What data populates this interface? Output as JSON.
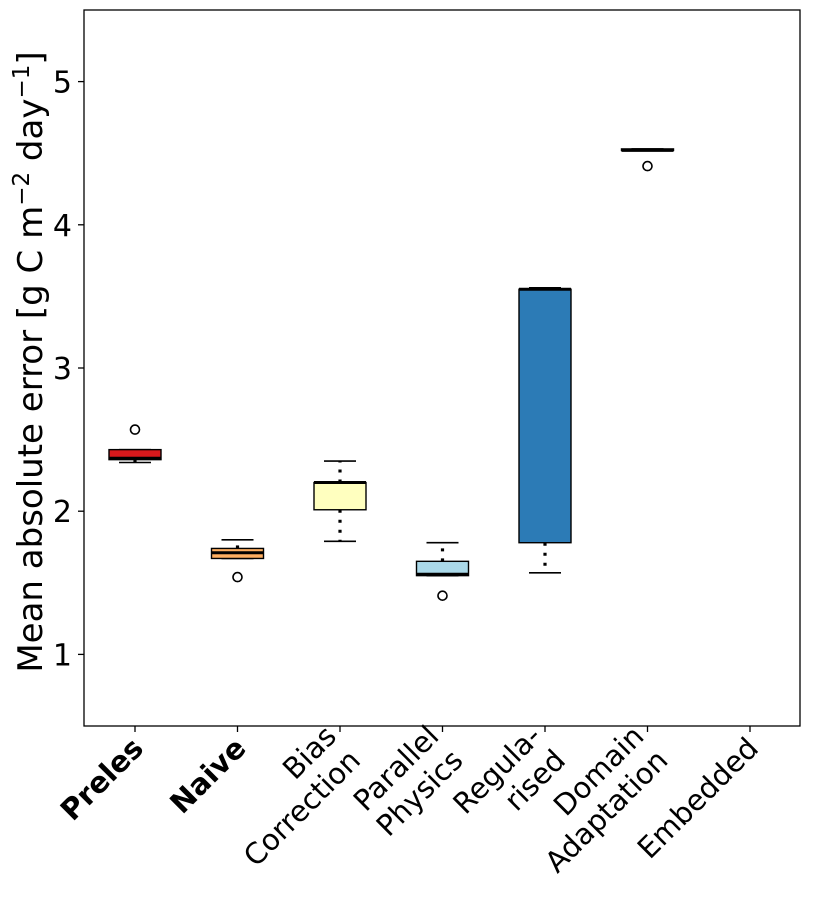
{
  "chart_data": {
    "type": "box",
    "ylabel": "Mean absolute error [g C m⁻² day⁻¹]",
    "ylabel_parts": [
      "Mean absolute error [g C m",
      "−2",
      " day",
      "−1",
      "]"
    ],
    "ylim": [
      0.5,
      5.5
    ],
    "yticks": [
      1,
      2,
      3,
      4,
      5
    ],
    "categories": [
      {
        "label": [
          "Preles"
        ],
        "bold": true
      },
      {
        "label": [
          "Naive"
        ],
        "bold": true
      },
      {
        "label": [
          "Bias",
          "Correction"
        ],
        "bold": false
      },
      {
        "label": [
          "Parallel",
          "Physics"
        ],
        "bold": false
      },
      {
        "label": [
          "Regula-",
          "rised"
        ],
        "bold": false
      },
      {
        "label": [
          "Domain",
          "Adaptation"
        ],
        "bold": false
      },
      {
        "label": [
          "Embedded"
        ],
        "bold": false
      }
    ],
    "boxes": [
      {
        "category": "Preles",
        "color": "#d7191c",
        "whislo": 2.34,
        "q1": 2.36,
        "med": 2.37,
        "q3": 2.43,
        "whishi": 2.43,
        "fliers": [
          2.57
        ]
      },
      {
        "category": "Naive",
        "color": "#fdae61",
        "whislo": 1.67,
        "q1": 1.67,
        "med": 1.71,
        "q3": 1.74,
        "whishi": 1.8,
        "fliers": [
          1.54
        ]
      },
      {
        "category": "Bias Correction",
        "color": "#ffffbf",
        "whislo": 1.79,
        "q1": 2.01,
        "med": 2.2,
        "q3": 2.2,
        "whishi": 2.35,
        "fliers": []
      },
      {
        "category": "Parallel Physics",
        "color": "#abd9e9",
        "whislo": 1.55,
        "q1": 1.55,
        "med": 1.56,
        "q3": 1.65,
        "whishi": 1.78,
        "fliers": [
          1.41
        ]
      },
      {
        "category": "Regularised",
        "color": "#2c7bb6",
        "whislo": 1.57,
        "q1": 1.78,
        "med": 3.55,
        "q3": 3.55,
        "whishi": 3.56,
        "fliers": []
      },
      {
        "category": "Domain Adaptation",
        "color": "#2c7bb6",
        "whislo": 4.52,
        "q1": 4.52,
        "med": 4.52,
        "q3": 4.53,
        "whishi": 4.53,
        "fliers": [
          4.41
        ]
      },
      {
        "category": "Embedded",
        "color": "#2c7bb6",
        "whislo": null,
        "q1": null,
        "med": null,
        "q3": null,
        "whishi": null,
        "fliers": []
      }
    ]
  }
}
